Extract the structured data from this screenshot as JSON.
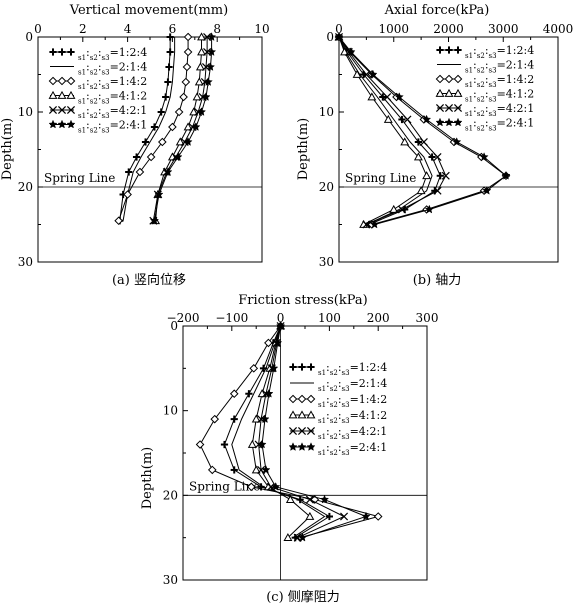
{
  "chart_data": [
    {
      "id": "a",
      "type": "line",
      "title": "Vertical movement(mm)",
      "caption": "(a) 竖向位移",
      "ylabel": "Depth(m)",
      "xlim": [
        0,
        10
      ],
      "ylim": [
        0,
        30
      ],
      "xticks": [
        "0",
        "2",
        "4",
        "6",
        "8",
        "10"
      ],
      "yticks": [
        "0",
        "10",
        "20",
        "30"
      ],
      "reference_line": {
        "depth": 20,
        "label": "Spring Line"
      },
      "legend_position": "top-left",
      "series": [
        {
          "label_html": "<i>E</i><tspan baseline-shift='sub' font-size='7'>s1</tspan>:<i>E</i><tspan baseline-shift='sub' font-size='7'>s2</tspan>:<i>E</i><tspan baseline-shift='sub' font-size='7'>s3</tspan>=1:2:4",
          "marker": "plus",
          "x": [
            5.9,
            5.9,
            5.85,
            5.8,
            5.7,
            5.5,
            5.2,
            4.8,
            4.4,
            4.05,
            3.8,
            3.65
          ],
          "y": [
            0,
            2,
            4,
            6,
            8,
            10,
            12,
            14,
            16,
            18,
            21,
            24.5
          ]
        },
        {
          "label_html": "<i>E</i><tspan baseline-shift='sub' font-size='7'>s1</tspan>:<i>E</i><tspan baseline-shift='sub' font-size='7'>s2</tspan>:<i>E</i><tspan baseline-shift='sub' font-size='7'>s3</tspan>=2:1:4",
          "marker": "none",
          "x": [
            6.1,
            6.1,
            6.05,
            6.0,
            5.9,
            5.7,
            5.4,
            5.0,
            4.6,
            4.25,
            4.0,
            3.8
          ],
          "y": [
            0,
            2,
            4,
            6,
            8,
            10,
            12,
            14,
            16,
            18,
            21,
            24.5
          ]
        },
        {
          "label_html": "<i>E</i><tspan baseline-shift='sub' font-size='7'>s1</tspan>:<i>E</i><tspan baseline-shift='sub' font-size='7'>s2</tspan>:<i>E</i><tspan baseline-shift='sub' font-size='7'>s3</tspan>=1:4:2",
          "marker": "diamond",
          "x": [
            6.7,
            6.7,
            6.65,
            6.6,
            6.5,
            6.3,
            6.0,
            5.55,
            5.05,
            4.55,
            4.0,
            3.6
          ],
          "y": [
            0,
            2,
            4,
            6,
            8,
            10,
            12,
            14,
            16,
            18,
            21,
            24.5
          ]
        },
        {
          "label_html": "<i>E</i><tspan baseline-shift='sub' font-size='7'>s1</tspan>:<i>E</i><tspan baseline-shift='sub' font-size='7'>s2</tspan>:<i>E</i><tspan baseline-shift='sub' font-size='7'>s3</tspan>=4:1:2",
          "marker": "triangle",
          "x": [
            7.3,
            7.3,
            7.25,
            7.2,
            7.1,
            6.95,
            6.7,
            6.35,
            6.0,
            5.65,
            5.35,
            5.25
          ],
          "y": [
            0,
            2,
            4,
            6,
            8,
            10,
            12,
            14,
            16,
            18,
            21,
            24.5
          ]
        },
        {
          "label_html": "<i>E</i><tspan baseline-shift='sub' font-size='7'>s1</tspan>:<i>E</i><tspan baseline-shift='sub' font-size='7'>s2</tspan>:<i>E</i><tspan baseline-shift='sub' font-size='7'>s3</tspan>=4:2:1",
          "marker": "cross",
          "x": [
            7.55,
            7.55,
            7.5,
            7.45,
            7.35,
            7.15,
            6.9,
            6.55,
            6.15,
            5.75,
            5.35,
            5.15
          ],
          "y": [
            0,
            2,
            4,
            6,
            8,
            10,
            12,
            14,
            16,
            18,
            21,
            24.5
          ]
        },
        {
          "label_html": "<i>E</i><tspan baseline-shift='sub' font-size='7'>s1</tspan>:<i>E</i><tspan baseline-shift='sub' font-size='7'>s2</tspan>:<i>E</i><tspan baseline-shift='sub' font-size='7'>s3</tspan>=2:4:1",
          "marker": "star",
          "x": [
            7.75,
            7.75,
            7.7,
            7.6,
            7.5,
            7.3,
            7.05,
            6.7,
            6.25,
            5.8,
            5.4,
            5.2
          ],
          "y": [
            0,
            2,
            4,
            6,
            8,
            10,
            12,
            14,
            16,
            18,
            21,
            24.5
          ]
        }
      ]
    },
    {
      "id": "b",
      "type": "line",
      "title": "Axial force(kPa)",
      "caption": "(b) 轴力",
      "ylabel": "Depth(m)",
      "xlim": [
        0,
        4000
      ],
      "ylim": [
        0,
        30
      ],
      "xticks": [
        "0",
        "1000",
        "2000",
        "3000",
        "4000"
      ],
      "yticks": [
        "0",
        "10",
        "20",
        "30"
      ],
      "reference_line": {
        "depth": 20,
        "label": "Spring Line"
      },
      "legend_position": "top-right",
      "series": [
        {
          "label_html": "<i>E</i><tspan baseline-shift='sub' font-size='7'>s1</tspan>:<i>E</i><tspan baseline-shift='sub' font-size='7'>s2</tspan>:<i>E</i><tspan baseline-shift='sub' font-size='7'>s3</tspan>=1:2:4",
          "marker": "plus",
          "x": [
            0,
            150,
            450,
            800,
            1150,
            1450,
            1700,
            1850,
            1750,
            1200,
            550
          ],
          "y": [
            0,
            2,
            5,
            8,
            11,
            14,
            16,
            18.5,
            20.5,
            23,
            25
          ]
        },
        {
          "label_html": "<i>E</i><tspan baseline-shift='sub' font-size='7'>s1</tspan>:<i>E</i><tspan baseline-shift='sub' font-size='7'>s2</tspan>:<i>E</i><tspan baseline-shift='sub' font-size='7'>s3</tspan>=2:1:4",
          "marker": "none",
          "x": [
            0,
            120,
            380,
            700,
            1000,
            1300,
            1550,
            1700,
            1600,
            1100,
            500
          ],
          "y": [
            0,
            2,
            5,
            8,
            11,
            14,
            16,
            18.5,
            20.5,
            23,
            25
          ]
        },
        {
          "label_html": "<i>E</i><tspan baseline-shift='sub' font-size='7'>s1</tspan>:<i>E</i><tspan baseline-shift='sub' font-size='7'>s2</tspan>:<i>E</i><tspan baseline-shift='sub' font-size='7'>s3</tspan>=1:4:2",
          "marker": "diamond",
          "x": [
            0,
            200,
            600,
            1050,
            1550,
            2100,
            2600,
            3050,
            2650,
            1600,
            600
          ],
          "y": [
            0,
            2,
            5,
            8,
            11,
            14,
            16,
            18.5,
            20.5,
            23,
            25
          ]
        },
        {
          "label_html": "<i>E</i><tspan baseline-shift='sub' font-size='7'>s1</tspan>:<i>E</i><tspan baseline-shift='sub' font-size='7'>s2</tspan>:<i>E</i><tspan baseline-shift='sub' font-size='7'>s3</tspan>=4:1:2",
          "marker": "triangle",
          "x": [
            0,
            100,
            330,
            600,
            900,
            1200,
            1450,
            1600,
            1500,
            1000,
            450
          ],
          "y": [
            0,
            2,
            5,
            8,
            11,
            14,
            16,
            18.5,
            20.5,
            23,
            25
          ]
        },
        {
          "label_html": "<i>E</i><tspan baseline-shift='sub' font-size='7'>s1</tspan>:<i>E</i><tspan baseline-shift='sub' font-size='7'>s2</tspan>:<i>E</i><tspan baseline-shift='sub' font-size='7'>s3</tspan>=4:2:1",
          "marker": "cross",
          "x": [
            0,
            180,
            500,
            880,
            1250,
            1550,
            1800,
            1950,
            1800,
            1150,
            500
          ],
          "y": [
            0,
            2,
            5,
            8,
            11,
            14,
            16,
            18.5,
            20.5,
            23,
            25
          ]
        },
        {
          "label_html": "<i>E</i><tspan baseline-shift='sub' font-size='7'>s1</tspan>:<i>E</i><tspan baseline-shift='sub' font-size='7'>s2</tspan>:<i>E</i><tspan baseline-shift='sub' font-size='7'>s3</tspan>=2:4:1",
          "marker": "star",
          "x": [
            0,
            220,
            620,
            1100,
            1600,
            2150,
            2650,
            3050,
            2700,
            1650,
            650
          ],
          "y": [
            0,
            2,
            5,
            8,
            11,
            14,
            16,
            18.5,
            20.5,
            23,
            25
          ]
        }
      ]
    },
    {
      "id": "c",
      "type": "line",
      "title": "Friction stress(kPa)",
      "caption": "(c) 侧摩阻力",
      "ylabel": "Depth(m)",
      "xlim": [
        -200,
        300
      ],
      "ylim": [
        0,
        30
      ],
      "xticks": [
        "−200",
        "−100",
        "0",
        "100",
        "200",
        "300"
      ],
      "yticks": [
        "0",
        "10",
        "20",
        "30"
      ],
      "reference_line": {
        "depth": 20,
        "label": "Spring Line"
      },
      "legend_position": "top-right",
      "series": [
        {
          "label_html": "<i>E</i><tspan baseline-shift='sub' font-size='7'>s1</tspan>:<i>E</i><tspan baseline-shift='sub' font-size='7'>s2</tspan>:<i>E</i><tspan baseline-shift='sub' font-size='7'>s3</tspan>=1:2:4",
          "marker": "plus",
          "x": [
            0,
            -15,
            -35,
            -65,
            -95,
            -115,
            -95,
            -40,
            40,
            100,
            30
          ],
          "y": [
            0,
            2,
            5,
            8,
            11,
            14,
            17,
            19,
            20.5,
            22.5,
            25
          ]
        },
        {
          "label_html": "<i>E</i><tspan baseline-shift='sub' font-size='7'>s1</tspan>:<i>E</i><tspan baseline-shift='sub' font-size='7'>s2</tspan>:<i>E</i><tspan baseline-shift='sub' font-size='7'>s3</tspan>=2:1:4",
          "marker": "none",
          "x": [
            0,
            -12,
            -30,
            -55,
            -80,
            -100,
            -85,
            -35,
            35,
            90,
            25
          ],
          "y": [
            0,
            2,
            5,
            8,
            11,
            14,
            17,
            19,
            20.5,
            22.5,
            25
          ]
        },
        {
          "label_html": "<i>E</i><tspan baseline-shift='sub' font-size='7'>s1</tspan>:<i>E</i><tspan baseline-shift='sub' font-size='7'>s2</tspan>:<i>E</i><tspan baseline-shift='sub' font-size='7'>s3</tspan>=1:4:2",
          "marker": "diamond",
          "x": [
            0,
            -25,
            -55,
            -95,
            -135,
            -165,
            -140,
            -60,
            70,
            200,
            40
          ],
          "y": [
            0,
            2,
            5,
            8,
            11,
            14,
            17,
            19,
            20.5,
            22.5,
            25
          ]
        },
        {
          "label_html": "<i>E</i><tspan baseline-shift='sub' font-size='7'>s1</tspan>:<i>E</i><tspan baseline-shift='sub' font-size='7'>s2</tspan>:<i>E</i><tspan baseline-shift='sub' font-size='7'>s3</tspan>=4:1:2",
          "marker": "triangle",
          "x": [
            0,
            -10,
            -22,
            -38,
            -50,
            -58,
            -50,
            -25,
            20,
            60,
            15
          ],
          "y": [
            0,
            2,
            5,
            8,
            11,
            14,
            17,
            19,
            20.5,
            22.5,
            25
          ]
        },
        {
          "label_html": "<i>E</i><tspan baseline-shift='sub' font-size='7'>s1</tspan>:<i>E</i><tspan baseline-shift='sub' font-size='7'>s2</tspan>:<i>E</i><tspan baseline-shift='sub' font-size='7'>s3</tspan>=4:2:1",
          "marker": "cross",
          "x": [
            0,
            -8,
            -18,
            -30,
            -40,
            -45,
            -40,
            -20,
            60,
            130,
            35
          ],
          "y": [
            0,
            2,
            5,
            8,
            11,
            14,
            17,
            19,
            20.5,
            22.5,
            25
          ]
        },
        {
          "label_html": "<i>E</i><tspan baseline-shift='sub' font-size='7'>s1</tspan>:<i>E</i><tspan baseline-shift='sub' font-size='7'>s2</tspan>:<i>E</i><tspan baseline-shift='sub' font-size='7'>s3</tspan>=2:4:1",
          "marker": "star",
          "x": [
            0,
            -6,
            -14,
            -24,
            -32,
            -38,
            -30,
            -10,
            90,
            175,
            45
          ],
          "y": [
            0,
            2,
            5,
            8,
            11,
            14,
            17,
            19,
            20.5,
            22.5,
            25
          ]
        }
      ]
    }
  ]
}
